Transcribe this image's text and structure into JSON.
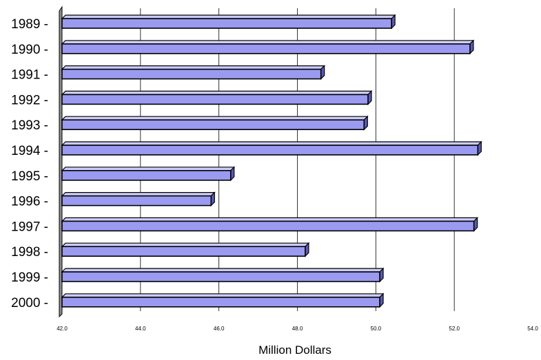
{
  "chart_data": {
    "type": "bar",
    "orientation": "horizontal",
    "style": "3d",
    "categories": [
      "1989",
      "1990",
      "1991",
      "1992",
      "1993",
      "1994",
      "1995",
      "1996",
      "1997",
      "1998",
      "1999",
      "2000"
    ],
    "category_tick_labels": [
      "1989 -",
      "1990 -",
      "1991 -",
      "1992 -",
      "1993 -",
      "1994 -",
      "1995 -",
      "1996 -",
      "1997 -",
      "1998 -",
      "1999 -",
      "2000 -"
    ],
    "values": [
      50.4,
      52.4,
      48.6,
      49.8,
      49.7,
      52.6,
      46.3,
      45.8,
      52.5,
      48.2,
      50.1,
      50.1
    ],
    "xlabel": "Million Dollars",
    "xlim": [
      42.0,
      54.0
    ],
    "xticks": [
      "42.0",
      "44.0",
      "46.0",
      "48.0",
      "50.0",
      "52.0",
      "54.0"
    ],
    "grid": "vertical",
    "legend": "none",
    "colors": {
      "bar_face": "#9a9af0",
      "bar_top": "#ccccf8",
      "bar_side": "#5a5ab4",
      "bar_edge": "#000000",
      "wall": "#8c8c8c",
      "grid": "#000000"
    }
  }
}
